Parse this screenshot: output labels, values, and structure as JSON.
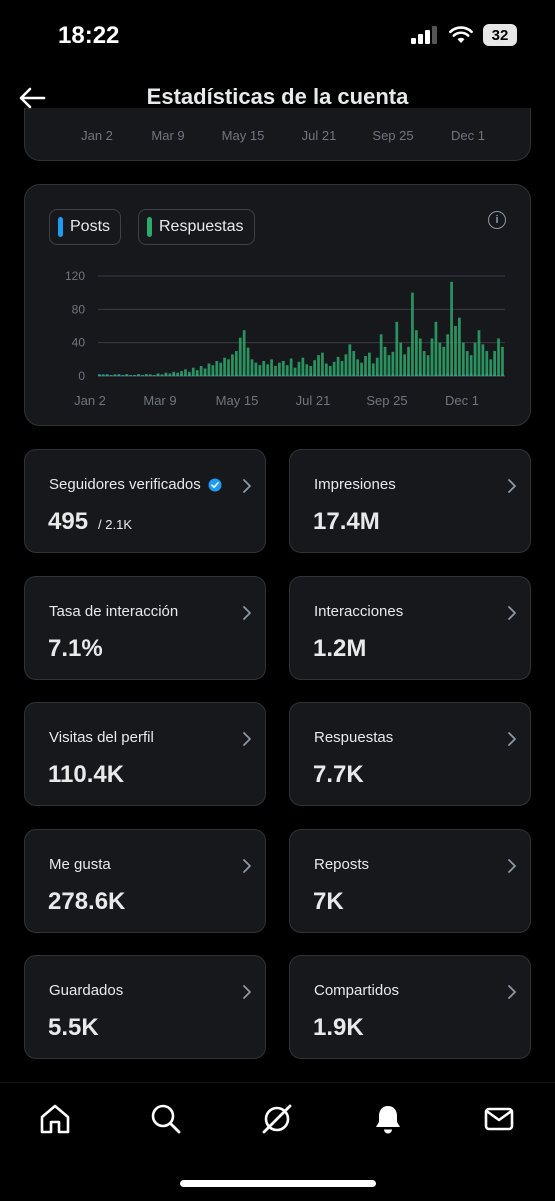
{
  "status_bar": {
    "time": "18:22",
    "battery": "32"
  },
  "header": {
    "title": "Estadísticas de la cuenta"
  },
  "top_axis": [
    "Jan 2",
    "Mar 9",
    "May 15",
    "Jul 21",
    "Sep 25",
    "Dec 1"
  ],
  "legend": [
    {
      "label": "Posts",
      "color": "#1d9bf0"
    },
    {
      "label": "Respuestas",
      "color": "#2ea86b"
    }
  ],
  "chart_data": {
    "type": "bar",
    "x_ticks": [
      "Jan 2",
      "Mar 9",
      "May 15",
      "Jul 21",
      "Sep 25",
      "Dec 1"
    ],
    "y_ticks": [
      0,
      40,
      80,
      120
    ],
    "ylim": [
      0,
      120
    ],
    "grid": true,
    "series": [
      {
        "name": "Posts",
        "color": "#1d9bf0",
        "values": [
          2,
          1,
          2,
          1,
          1,
          2,
          1,
          2,
          1,
          1,
          2,
          1,
          2,
          1,
          1,
          2,
          1,
          2,
          1,
          2,
          1,
          2,
          1,
          2,
          1,
          2,
          1,
          2,
          1,
          2,
          1,
          2,
          1,
          2,
          1,
          2,
          1,
          2,
          1,
          2,
          2,
          1,
          2,
          1,
          2,
          1,
          2,
          2,
          1,
          2,
          1,
          2,
          2,
          1,
          2,
          2,
          1,
          2,
          1,
          2,
          1,
          2,
          2,
          1,
          2,
          2,
          1,
          2,
          2,
          2,
          1,
          2,
          2,
          1,
          2,
          2,
          1,
          2,
          2,
          2,
          1,
          2,
          3,
          2,
          2,
          1,
          2,
          2,
          2,
          3,
          2,
          2,
          1,
          2,
          2,
          3,
          2,
          2,
          2,
          3,
          2,
          2,
          1,
          2
        ]
      },
      {
        "name": "Respuestas",
        "color": "#2ea86b",
        "values": [
          1,
          2,
          1,
          1,
          2,
          1,
          1,
          2,
          1,
          1,
          2,
          1,
          2,
          2,
          1,
          3,
          2,
          4,
          3,
          5,
          4,
          6,
          8,
          5,
          10,
          7,
          12,
          9,
          15,
          13,
          18,
          16,
          22,
          20,
          26,
          30,
          46,
          55,
          34,
          20,
          16,
          13,
          18,
          14,
          20,
          12,
          16,
          18,
          13,
          21,
          10,
          17,
          22,
          14,
          12,
          19,
          25,
          28,
          15,
          12,
          17,
          23,
          18,
          26,
          38,
          30,
          20,
          16,
          24,
          28,
          15,
          22,
          50,
          35,
          25,
          29,
          65,
          40,
          26,
          35,
          100,
          55,
          45,
          30,
          25,
          45,
          65,
          40,
          35,
          50,
          113,
          60,
          70,
          40,
          30,
          25,
          40,
          55,
          38,
          30,
          20,
          30,
          45,
          35
        ]
      }
    ]
  },
  "tiles": [
    {
      "label": "Seguidores verificados",
      "value": "495",
      "sub": "/ 2.1K",
      "verified": true
    },
    {
      "label": "Impresiones",
      "value": "17.4M"
    },
    {
      "label": "Tasa de interacción",
      "value": "7.1%"
    },
    {
      "label": "Interacciones",
      "value": "1.2M"
    },
    {
      "label": "Visitas del perfil",
      "value": "110.4K"
    },
    {
      "label": "Respuestas",
      "value": "7.7K"
    },
    {
      "label": "Me gusta",
      "value": "278.6K"
    },
    {
      "label": "Reposts",
      "value": "7K"
    },
    {
      "label": "Guardados",
      "value": "5.5K"
    },
    {
      "label": "Compartidos",
      "value": "1.9K"
    }
  ],
  "nav": [
    {
      "name": "home-icon"
    },
    {
      "name": "search-icon"
    },
    {
      "name": "grok-icon"
    },
    {
      "name": "notifications-icon"
    },
    {
      "name": "messages-icon"
    }
  ]
}
